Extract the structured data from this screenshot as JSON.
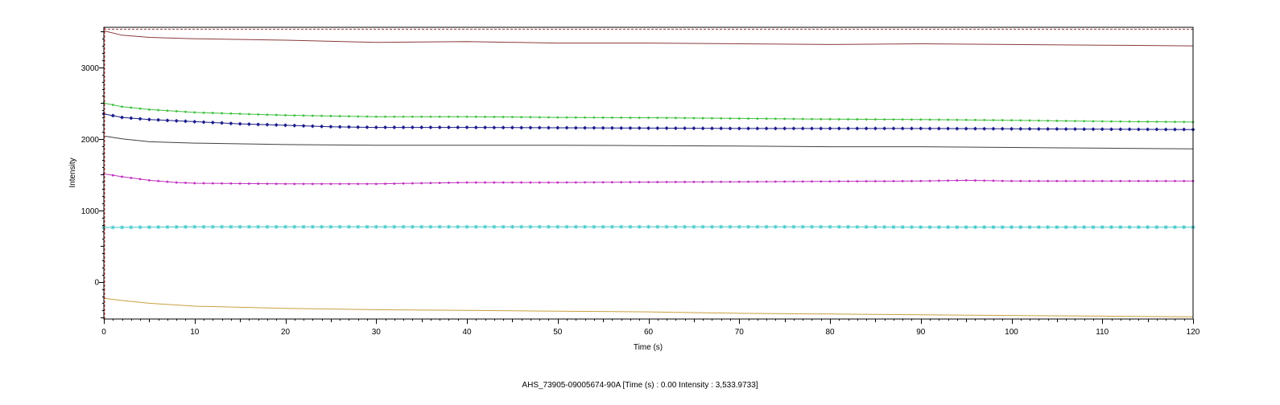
{
  "chart_data": {
    "type": "line",
    "title": "",
    "xlabel": "Time (s)",
    "ylabel": "Intensity",
    "xlim": [
      0,
      120
    ],
    "ylim": [
      -520,
      3560
    ],
    "x_ticks": [
      0,
      10,
      20,
      30,
      40,
      50,
      60,
      70,
      80,
      90,
      100,
      110,
      120
    ],
    "y_ticks": [
      0,
      1000,
      2000,
      3000
    ],
    "grid": false,
    "legend": "none",
    "reference_line": {
      "y": 3533.97,
      "color": "#a04040",
      "style": "dashed"
    },
    "cursor": {
      "x": 0,
      "color": "#d04040",
      "style": "dashed"
    },
    "series": [
      {
        "color": "#8b3a3a",
        "marker": "none",
        "points": [
          [
            0,
            3510
          ],
          [
            2,
            3450
          ],
          [
            5,
            3420
          ],
          [
            10,
            3400
          ],
          [
            20,
            3380
          ],
          [
            30,
            3350
          ],
          [
            40,
            3360
          ],
          [
            50,
            3340
          ],
          [
            60,
            3340
          ],
          [
            70,
            3330
          ],
          [
            80,
            3320
          ],
          [
            90,
            3330
          ],
          [
            100,
            3320
          ],
          [
            110,
            3310
          ],
          [
            120,
            3300
          ]
        ]
      },
      {
        "color": "#40c040",
        "marker": "dot",
        "points": [
          [
            0,
            2500
          ],
          [
            2,
            2450
          ],
          [
            5,
            2410
          ],
          [
            10,
            2370
          ],
          [
            15,
            2350
          ],
          [
            20,
            2330
          ],
          [
            30,
            2310
          ],
          [
            40,
            2310
          ],
          [
            50,
            2300
          ],
          [
            60,
            2295
          ],
          [
            70,
            2285
          ],
          [
            80,
            2275
          ],
          [
            90,
            2270
          ],
          [
            100,
            2260
          ],
          [
            110,
            2245
          ],
          [
            120,
            2235
          ]
        ]
      },
      {
        "color": "#1c1c8c",
        "marker": "diamond",
        "points": [
          [
            0,
            2350
          ],
          [
            2,
            2300
          ],
          [
            5,
            2270
          ],
          [
            10,
            2240
          ],
          [
            15,
            2210
          ],
          [
            20,
            2190
          ],
          [
            25,
            2170
          ],
          [
            30,
            2160
          ],
          [
            40,
            2160
          ],
          [
            50,
            2155
          ],
          [
            60,
            2150
          ],
          [
            70,
            2145
          ],
          [
            80,
            2145
          ],
          [
            90,
            2145
          ],
          [
            100,
            2140
          ],
          [
            110,
            2135
          ],
          [
            120,
            2130
          ]
        ]
      },
      {
        "color": "#404040",
        "marker": "none",
        "points": [
          [
            0,
            2040
          ],
          [
            2,
            2000
          ],
          [
            5,
            1960
          ],
          [
            10,
            1940
          ],
          [
            20,
            1920
          ],
          [
            30,
            1910
          ],
          [
            40,
            1910
          ],
          [
            50,
            1910
          ],
          [
            60,
            1905
          ],
          [
            70,
            1900
          ],
          [
            80,
            1890
          ],
          [
            90,
            1890
          ],
          [
            100,
            1880
          ],
          [
            110,
            1870
          ],
          [
            120,
            1860
          ]
        ]
      },
      {
        "color": "#c030c0",
        "marker": "dot",
        "points": [
          [
            0,
            1510
          ],
          [
            2,
            1470
          ],
          [
            5,
            1420
          ],
          [
            8,
            1390
          ],
          [
            10,
            1380
          ],
          [
            20,
            1370
          ],
          [
            30,
            1370
          ],
          [
            40,
            1390
          ],
          [
            50,
            1390
          ],
          [
            60,
            1395
          ],
          [
            70,
            1400
          ],
          [
            80,
            1405
          ],
          [
            90,
            1410
          ],
          [
            95,
            1420
          ],
          [
            100,
            1410
          ],
          [
            110,
            1410
          ],
          [
            120,
            1410
          ]
        ]
      },
      {
        "color": "#40c8c8",
        "marker": "star",
        "points": [
          [
            0,
            760
          ],
          [
            10,
            770
          ],
          [
            20,
            770
          ],
          [
            30,
            770
          ],
          [
            40,
            770
          ],
          [
            50,
            770
          ],
          [
            60,
            770
          ],
          [
            70,
            770
          ],
          [
            80,
            770
          ],
          [
            90,
            765
          ],
          [
            100,
            765
          ],
          [
            110,
            765
          ],
          [
            120,
            765
          ]
        ]
      },
      {
        "color": "#c8a040",
        "marker": "none",
        "points": [
          [
            0,
            -230
          ],
          [
            2,
            -260
          ],
          [
            5,
            -300
          ],
          [
            10,
            -340
          ],
          [
            20,
            -370
          ],
          [
            30,
            -390
          ],
          [
            40,
            -400
          ],
          [
            50,
            -410
          ],
          [
            60,
            -420
          ],
          [
            70,
            -440
          ],
          [
            80,
            -450
          ],
          [
            90,
            -460
          ],
          [
            100,
            -470
          ],
          [
            110,
            -480
          ],
          [
            120,
            -490
          ]
        ]
      }
    ]
  },
  "status": {
    "text": "AHS_73905-09005674-90A [Time (s) : 0.00  Intensity : 3,533.9733]"
  }
}
